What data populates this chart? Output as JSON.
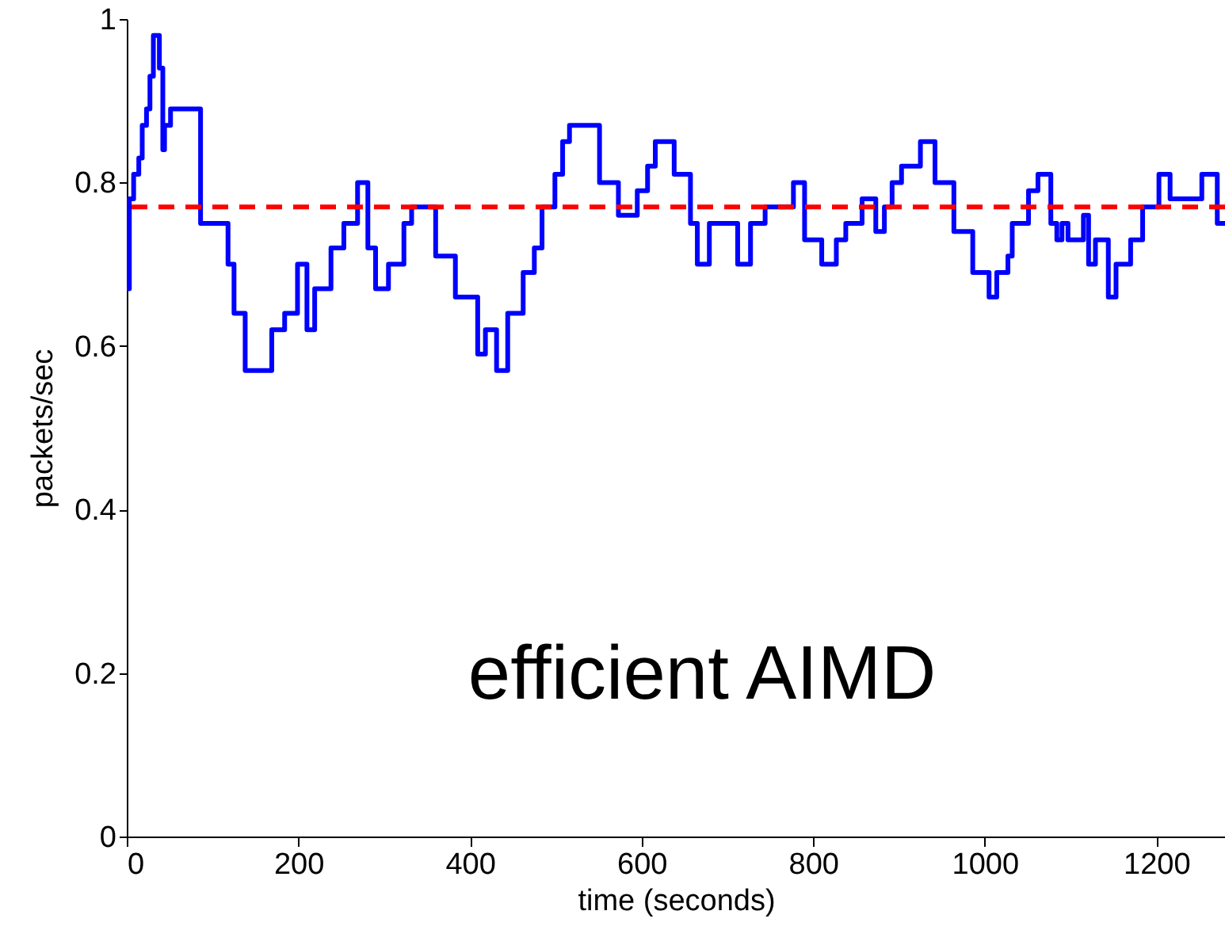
{
  "chart_data": {
    "type": "step",
    "xlabel": "time (seconds)",
    "ylabel": "packets/sec",
    "xlim": [
      0,
      1280
    ],
    "ylim": [
      0,
      1
    ],
    "xticks": [
      0,
      200,
      400,
      600,
      800,
      1000,
      1200
    ],
    "yticks": [
      0,
      0.2,
      0.4,
      0.6,
      0.8,
      1
    ],
    "grid": false,
    "line_style": "solid",
    "series": [
      {
        "color": "#0000ff",
        "x": [
          0,
          3,
          8,
          14,
          18,
          23,
          27,
          31,
          38,
          42,
          44,
          51,
          86,
          118,
          125,
          138,
          169,
          184,
          199,
          210,
          219,
          238,
          253,
          269,
          281,
          290,
          305,
          323,
          332,
          360,
          383,
          409,
          418,
          431,
          444,
          462,
          475,
          484,
          499,
          508,
          516,
          551,
          573,
          595,
          607,
          616,
          638,
          657,
          665,
          679,
          712,
          727,
          744,
          777,
          790,
          810,
          827,
          838,
          857,
          873,
          883,
          892,
          903,
          925,
          942,
          964,
          986,
          1005,
          1014,
          1027,
          1032,
          1051,
          1062,
          1077,
          1084,
          1090,
          1097,
          1115,
          1121,
          1129,
          1144,
          1153,
          1170,
          1184,
          1203,
          1216,
          1253,
          1271,
          1280
        ],
        "values": [
          0.67,
          0.78,
          0.81,
          0.83,
          0.87,
          0.89,
          0.93,
          0.98,
          0.94,
          0.84,
          0.87,
          0.89,
          0.75,
          0.7,
          0.64,
          0.57,
          0.62,
          0.64,
          0.7,
          0.62,
          0.67,
          0.72,
          0.75,
          0.8,
          0.72,
          0.67,
          0.7,
          0.75,
          0.77,
          0.71,
          0.66,
          0.59,
          0.62,
          0.57,
          0.64,
          0.69,
          0.72,
          0.77,
          0.81,
          0.85,
          0.87,
          0.8,
          0.76,
          0.79,
          0.82,
          0.85,
          0.81,
          0.75,
          0.7,
          0.75,
          0.7,
          0.75,
          0.77,
          0.8,
          0.73,
          0.7,
          0.73,
          0.75,
          0.78,
          0.74,
          0.77,
          0.8,
          0.82,
          0.85,
          0.8,
          0.74,
          0.69,
          0.66,
          0.69,
          0.71,
          0.75,
          0.79,
          0.81,
          0.75,
          0.73,
          0.75,
          0.73,
          0.76,
          0.7,
          0.73,
          0.66,
          0.7,
          0.73,
          0.77,
          0.81,
          0.78,
          0.81,
          0.75,
          0.75
        ]
      }
    ],
    "ref_lines": [
      {
        "axis": "y",
        "value": 0.77,
        "color": "#ff0000",
        "line_style": "dashed"
      }
    ],
    "annotations": [
      "efficient AIMD"
    ]
  }
}
